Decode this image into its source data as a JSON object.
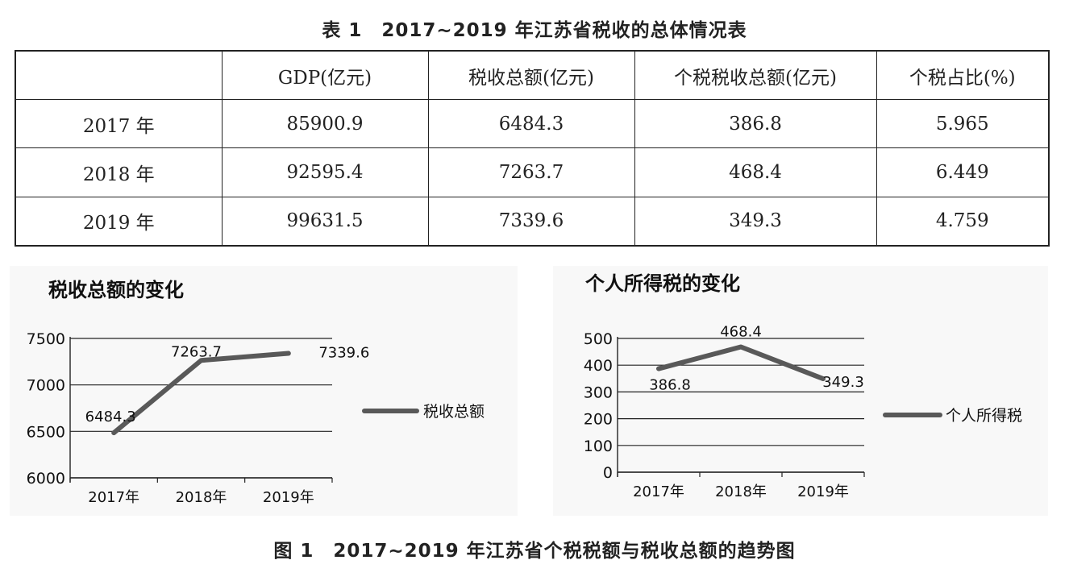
{
  "table": {
    "caption": "表 1　2017~2019 年江苏省税收的总体情况表",
    "headers": [
      "",
      "GDP(亿元)",
      "税收总额(亿元)",
      "个税税收总额(亿元)",
      "个税占比(%)"
    ],
    "rows": [
      [
        "2017 年",
        "85900.9",
        "6484.3",
        "386.8",
        "5.965"
      ],
      [
        "2018 年",
        "92595.4",
        "7263.7",
        "468.4",
        "6.449"
      ],
      [
        "2019 年",
        "99631.5",
        "7339.6",
        "349.3",
        "4.759"
      ]
    ]
  },
  "figure_caption": "图 1　2017~2019 年江苏省个税税额与税收总额的趋势图",
  "chart_data": [
    {
      "type": "line",
      "title": "税收总额的变化",
      "categories": [
        "2017年",
        "2018年",
        "2019年"
      ],
      "series": [
        {
          "name": "税收总额",
          "values": [
            6484.3,
            7263.7,
            7339.6
          ],
          "labels": [
            "6484.3",
            "7263.7",
            "7339.6"
          ]
        }
      ],
      "yticks": [
        "6000",
        "6500",
        "7000",
        "7500"
      ],
      "ylim": [
        6000,
        7500
      ],
      "xlabel": "",
      "ylabel": "",
      "grid": true,
      "legend": "right",
      "line_color": "#595959"
    },
    {
      "type": "line",
      "title": "个人所得税的变化",
      "categories": [
        "2017年",
        "2018年",
        "2019年"
      ],
      "series": [
        {
          "name": "个人所得税",
          "values": [
            386.8,
            468.4,
            349.3
          ],
          "labels": [
            "386.8",
            "468.4",
            "349.3"
          ]
        }
      ],
      "yticks": [
        "0",
        "100",
        "200",
        "300",
        "400",
        "500"
      ],
      "ylim": [
        0,
        500
      ],
      "xlabel": "",
      "ylabel": "",
      "grid": true,
      "legend": "right",
      "line_color": "#595959"
    }
  ]
}
